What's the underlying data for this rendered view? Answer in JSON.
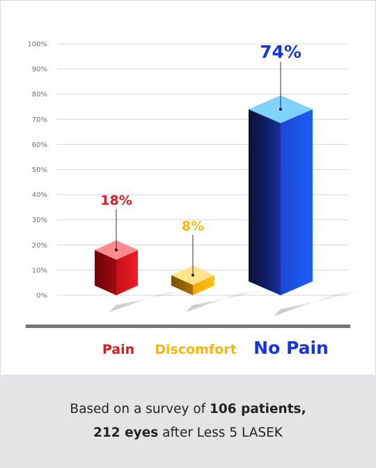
{
  "chart_data": {
    "type": "bar",
    "categories": [
      "Pain",
      "Discomfort",
      "No Pain"
    ],
    "values": [
      18,
      8,
      74
    ],
    "value_labels": [
      "18%",
      "8%",
      "74%"
    ],
    "ylim": [
      0,
      100
    ],
    "yticks": [
      "0%",
      "10%",
      "20%",
      "30%",
      "40%",
      "50%",
      "60%",
      "70%",
      "80%",
      "90%",
      "100%"
    ],
    "grid": true,
    "legend": "none",
    "colors": {
      "Pain": "#e0181e",
      "Discomfort": "#f6b60c",
      "No Pain": "#1434e0"
    }
  },
  "caption": {
    "line1_prefix": "Based on a survey of ",
    "line1_bold": "106 patients,",
    "line2_bold": "212 eyes",
    "line2_suffix": " after Less 5 LASEK"
  }
}
